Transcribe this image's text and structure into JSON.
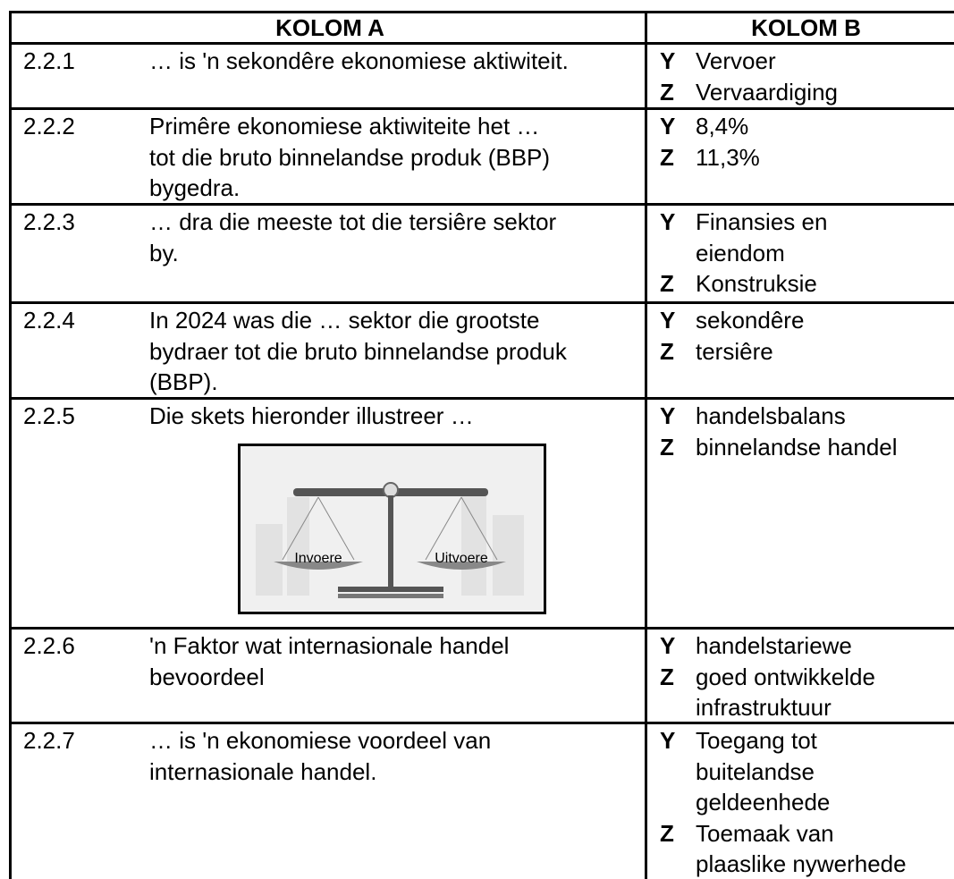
{
  "table": {
    "header": [
      "KOLOM A",
      "KOLOM B"
    ],
    "rows": [
      {
        "number": "2.2.1",
        "text": [
          "… is 'n sekondêre ekonomiese aktiwiteit."
        ],
        "options": [
          {
            "letter": "Y",
            "lines": [
              "Vervoer"
            ]
          },
          {
            "letter": "Z",
            "lines": [
              "Vervaardiging"
            ]
          }
        ]
      },
      {
        "number": "2.2.2",
        "text": [
          "Primêre ekonomiese aktiwiteite het …",
          "tot die bruto binnelandse produk (BBP)",
          "bygedra."
        ],
        "options": [
          {
            "letter": "Y",
            "lines": [
              "8,4%"
            ]
          },
          {
            "letter": "Z",
            "lines": [
              "11,3%"
            ]
          }
        ]
      },
      {
        "number": "2.2.3",
        "text": [
          "… dra die meeste tot die tersiêre sektor",
          "by."
        ],
        "options": [
          {
            "letter": "Y",
            "lines": [
              "Finansies en",
              "eiendom"
            ]
          },
          {
            "letter": "Z",
            "lines": [
              "Konstruksie"
            ]
          }
        ]
      },
      {
        "number": "2.2.4",
        "text": [
          "In 2024 was die … sektor die grootste",
          "bydraer tot die bruto binnelandse produk",
          "(BBP)."
        ],
        "options": [
          {
            "letter": "Y",
            "lines": [
              "sekondêre"
            ]
          },
          {
            "letter": "Z",
            "lines": [
              "tersiêre"
            ]
          }
        ]
      },
      {
        "number": "2.2.5",
        "text": [
          "Die skets hieronder illustreer …"
        ],
        "sketch_labels": [
          "Invoere",
          "Uitvoere"
        ],
        "options": [
          {
            "letter": "Y",
            "lines": [
              "handelsbalans"
            ]
          },
          {
            "letter": "Z",
            "lines": [
              "binnelandse handel"
            ]
          }
        ]
      },
      {
        "number": "2.2.6",
        "text": [
          "'n Faktor wat internasionale handel",
          "bevoordeel"
        ],
        "options": [
          {
            "letter": "Y",
            "lines": [
              "handelstariewe"
            ]
          },
          {
            "letter": "Z",
            "lines": [
              "goed ontwikkelde",
              "infrastruktuur"
            ]
          }
        ]
      },
      {
        "number": "2.2.7",
        "text": [
          "…  is 'n ekonomiese voordeel van",
          "internasionale handel."
        ],
        "options": [
          {
            "letter": "Y",
            "lines": [
              "Toegang tot",
              "buitelandse",
              "geldeenhede"
            ]
          },
          {
            "letter": "Z",
            "lines": [
              "Toemaak van",
              "plaaslike nywerhede"
            ]
          }
        ]
      }
    ]
  }
}
